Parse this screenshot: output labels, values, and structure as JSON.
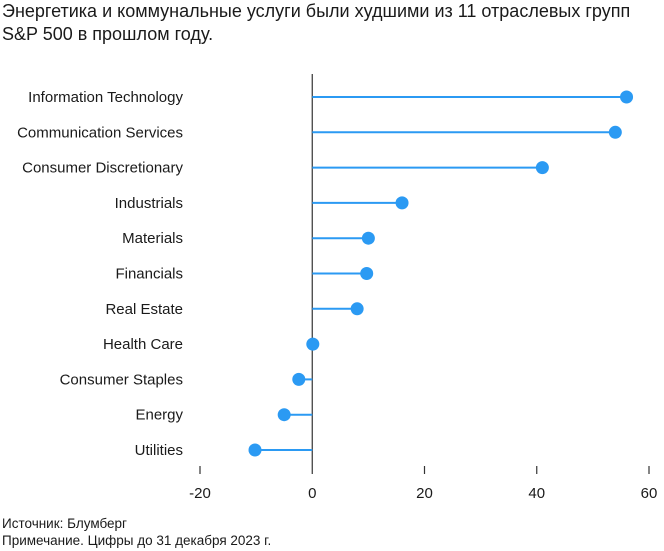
{
  "title_lines": [
    "Энергетика и коммунальные услуги были худшими из 11 отраслевых групп",
    "S&P 500 в прошлом году."
  ],
  "colors": {
    "accent": "#2b9af3",
    "axis": "#333333",
    "text": "#1a1a1a"
  },
  "chart_data": {
    "type": "bar",
    "style": "lollipop-horizontal",
    "title": "Энергетика и коммунальные услуги были худшими из 11 отраслевых групп S&P 500 в прошлом году.",
    "categories": [
      "Information Technology",
      "Communication Services",
      "Consumer Discretionary",
      "Industrials",
      "Materials",
      "Financials",
      "Real Estate",
      "Health Care",
      "Consumer Staples",
      "Energy",
      "Utilities"
    ],
    "values": [
      56,
      54,
      41,
      16,
      10,
      9.7,
      8,
      0.1,
      -2.4,
      -5,
      -10.2
    ],
    "xlim": [
      -20,
      60
    ],
    "xticks": [
      -20,
      0,
      20,
      40,
      60
    ],
    "xtick_labels": [
      "-20",
      "0",
      "20",
      "40",
      "60"
    ],
    "xlabel": "",
    "ylabel": "",
    "grid": false
  },
  "footer": {
    "source": "Источник: Блумберг",
    "note": "Примечание. Цифры до 31 декабря 2023 г."
  }
}
